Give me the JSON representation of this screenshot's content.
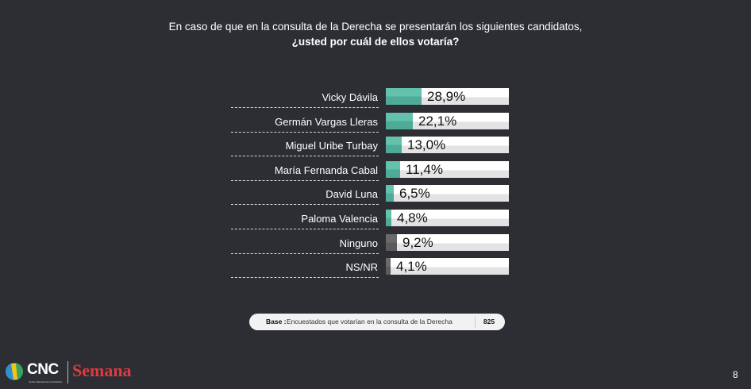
{
  "title": {
    "line1": "En caso de que en la consulta de la Derecha se presentarán los siguientes candidatos,",
    "line2": "¿usted por cuál de ellos votaría?"
  },
  "colors": {
    "background": "#2c2e34",
    "candidate_bar": "#62c2ac",
    "other_bar": "#6a6a6a",
    "track": "#ffffff",
    "semana_red": "#e03a3e"
  },
  "chart_data": {
    "type": "bar",
    "orientation": "horizontal",
    "title": "En caso de que en la consulta de la Derecha se presentarán los siguientes candidatos, ¿usted por cuál de ellos votaría?",
    "xlabel": "",
    "ylabel": "",
    "xlim": [
      0,
      100
    ],
    "grid": false,
    "legend": null,
    "categories": [
      "Vicky Dávila",
      "Germán Vargas Lleras",
      "Miguel Uribe Turbay",
      "María Fernanda Cabal",
      "David Luna",
      "Paloma Valencia",
      "Ninguno",
      "NS/NR"
    ],
    "values": [
      28.9,
      22.1,
      13.0,
      11.4,
      6.5,
      4.8,
      9.2,
      4.1
    ],
    "value_labels": [
      "28,9%",
      "22,1%",
      "13,0%",
      "11,4%",
      "6,5%",
      "4,8%",
      "9,2%",
      "4,1%"
    ],
    "bar_colors": [
      "#62c2ac",
      "#62c2ac",
      "#62c2ac",
      "#62c2ac",
      "#62c2ac",
      "#62c2ac",
      "#6a6a6a",
      "#6a6a6a"
    ]
  },
  "rows": [
    {
      "label": "Vicky Dávila",
      "value": 28.9,
      "display": "28,9%",
      "kind": "teal"
    },
    {
      "label": "Germán Vargas Lleras",
      "value": 22.1,
      "display": "22,1%",
      "kind": "teal"
    },
    {
      "label": "Miguel Uribe Turbay",
      "value": 13.0,
      "display": "13,0%",
      "kind": "teal"
    },
    {
      "label": "María Fernanda Cabal",
      "value": 11.4,
      "display": "11,4%",
      "kind": "teal"
    },
    {
      "label": "David Luna",
      "value": 6.5,
      "display": "6,5%",
      "kind": "teal"
    },
    {
      "label": "Paloma Valencia",
      "value": 4.8,
      "display": "4,8%",
      "kind": "teal"
    },
    {
      "label": "Ninguno",
      "value": 9.2,
      "display": "9,2%",
      "kind": "grey"
    },
    {
      "label": "NS/NR",
      "value": 4.1,
      "display": "4,1%",
      "kind": "grey"
    }
  ],
  "base": {
    "label": "Base :",
    "text": "Encuestados que votarían en la consulta de la Derecha",
    "count": "825"
  },
  "footer": {
    "cnc_logo_text": "CNC",
    "cnc_subtitle": "Centro Nacional de Consultoría",
    "semana_logo_text": "Semana",
    "page_number": "8"
  }
}
